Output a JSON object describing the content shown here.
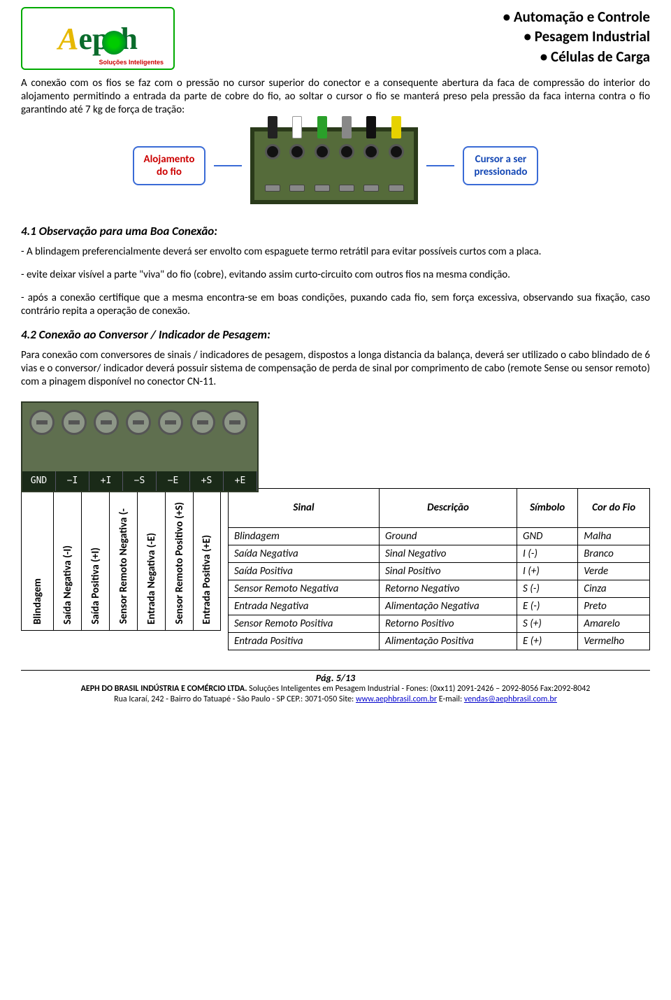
{
  "header": {
    "logo_text_a": "A",
    "logo_text_rest": "ep",
    "logo_text_h": "h",
    "logo_sub": "Soluções Inteligentes",
    "lines": [
      "Automação e Controle",
      "Pesagem Industrial",
      "Células de Carga"
    ]
  },
  "colors": {
    "logo_border": "#0a8a2d",
    "logo_text": "#0a6b2b",
    "logo_a": "#e6b800",
    "callout_border": "#3a6bd6",
    "callout_red": "#c00000",
    "callout_blue": "#1548b5"
  },
  "para1": "A conexão com os fios se faz com o pressão no cursor superior do conector e a consequente abertura da faca de compressão do interior do alojamento permitindo a entrada da parte de cobre do fio, ao soltar o cursor o fio se manterá preso pela pressão da faca interna contra o fio garantindo até 7 kg de força de tração:",
  "callout_left_l1": "Alojamento",
  "callout_left_l2": "do fio",
  "callout_right_l1": "Cursor a ser",
  "callout_right_l2": "pressionado",
  "wire_colors": [
    "#222222",
    "#ffffff",
    "#2aa02a",
    "#888888",
    "#111111",
    "#e6d200"
  ],
  "sec41_title": "4.1 Observação para uma Boa Conexão:",
  "sec41_p1": "- A blindagem preferencialmente deverá ser envolto com espaguete termo retrátil para evitar  possíveis curtos com a placa.",
  "sec41_p2": "- evite deixar visível a parte \"viva\" do fio (cobre), evitando assim curto-circuito com outros fios na mesma condição.",
  "sec41_p3": "- após a conexão certifique que a mesma encontra-se em boas condições, puxando cada fio, sem força excessiva, observando sua fixação, caso contrário repita a operação de conexão.",
  "sec42_title": "4.2 Conexão ao Conversor / Indicador de Pesagem:",
  "sec42_p1": "Para conexão com conversores de sinais / indicadores de pesagem, dispostos a longa distancia da balança, deverá ser utilizado o cabo blindado de 6 vias e o conversor/ indicador deverá possuir sistema de compensação de perda de sinal por comprimento de cabo (remote Sense ou sensor remoto) com a pinagem disponível no conector CN-11.",
  "strip_labels": [
    "GND",
    "−I",
    "+I",
    "−S",
    "−E",
    "+S",
    "+E"
  ],
  "vertical_labels": [
    "Blindagem",
    "Saída Negativa (-I)",
    "Saída Positiva (+I)",
    "Sensor  Remoto Negativa (-",
    "Entrada Negativa (-E)",
    "Sensor  Remoto Positivo (+S)",
    "Entrada Positiva (+E)"
  ],
  "table": {
    "headers": [
      "Sinal",
      "Descrição",
      "Símbolo",
      "Cor do Fio"
    ],
    "rows": [
      [
        "Blindagem",
        "Ground",
        "GND",
        "Malha"
      ],
      [
        "Saída Negativa",
        "Sinal    Negativo",
        "I (-)",
        "Branco"
      ],
      [
        "Saída Positiva",
        "Sinal Positivo",
        "I (+)",
        "Verde"
      ],
      [
        "Sensor Remoto Negativa",
        "Retorno Negativo",
        "S (-)",
        "Cinza"
      ],
      [
        "Entrada Negativa",
        "Alimentação Negativa",
        "E (-)",
        "Preto"
      ],
      [
        "Sensor Remoto Positiva",
        "Retorno Positivo",
        "S (+)",
        "Amarelo"
      ],
      [
        "Entrada Positiva",
        "Alimentação Positiva",
        "E (+)",
        "Vermelho"
      ]
    ]
  },
  "footer": {
    "page": "Pág. 5/13",
    "company": "AEPH DO BRASIL INDÚSTRIA E COMÉRCIO LTDA.",
    "desc": " Soluções Inteligentes em Pesagem Industrial - Fones: (0xx11) 2091-2426 – 2092-8056  Fax:2092-8042",
    "addr_pre": "Rua Icaraí, 242     -     Bairro do Tatuapé  -  São Paulo    -    SP         CEP.: 3071-050          Site: ",
    "site": "www.aephbrasil.com.br",
    "mail_pre": "          E-mail: ",
    "mail": "vendas@aephbrasil.com.br"
  }
}
